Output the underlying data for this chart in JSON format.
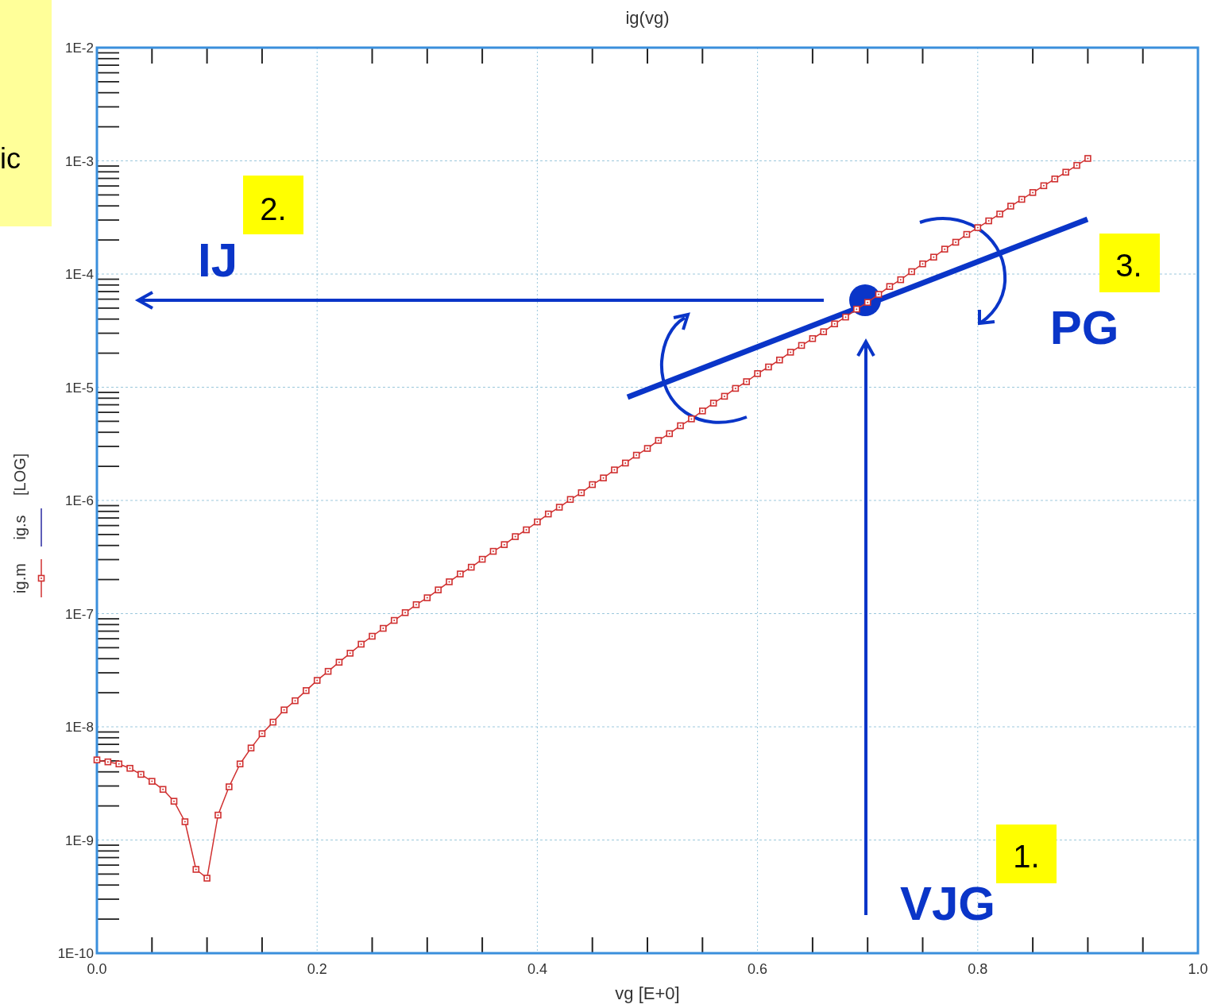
{
  "chart_data": {
    "type": "line",
    "title": "ig(vg)",
    "xlabel": "vg  [E+0]",
    "ylabel": "[LOG]",
    "log": true,
    "grid": true,
    "legend": "left",
    "xlim": [
      0,
      1
    ],
    "ylim": [
      1e-10,
      0.01
    ],
    "xticks": [
      {
        "value": 0,
        "label": "0.0"
      },
      {
        "value": 0.2,
        "label": "0.2"
      },
      {
        "value": 0.4,
        "label": "0.4"
      },
      {
        "value": 0.6,
        "label": "0.6"
      },
      {
        "value": 0.8,
        "label": "0.8"
      },
      {
        "value": 1,
        "label": "1.0"
      }
    ],
    "yticks": [
      {
        "value": 1e-10,
        "label": "1E-10"
      },
      {
        "value": 1e-09,
        "label": "1E-9"
      },
      {
        "value": 1e-08,
        "label": "1E-8"
      },
      {
        "value": 1e-07,
        "label": "1E-7"
      },
      {
        "value": 1e-06,
        "label": "1E-6"
      },
      {
        "value": 1e-05,
        "label": "1E-5"
      },
      {
        "value": 0.0001,
        "label": "1E-4"
      },
      {
        "value": 0.001,
        "label": "1E-3"
      },
      {
        "value": 0.01,
        "label": "1E-2"
      }
    ],
    "x": [
      0,
      0.01,
      0.02,
      0.03,
      0.04,
      0.05,
      0.06,
      0.07,
      0.08,
      0.09,
      0.1,
      0.11,
      0.12,
      0.13,
      0.14,
      0.15,
      0.16,
      0.17,
      0.18,
      0.19,
      0.2,
      0.21,
      0.22,
      0.23,
      0.24,
      0.25,
      0.26,
      0.27,
      0.28,
      0.29,
      0.3,
      0.31,
      0.32,
      0.33,
      0.34,
      0.35,
      0.36,
      0.37,
      0.38,
      0.39,
      0.4,
      0.41,
      0.42,
      0.43,
      0.44,
      0.45,
      0.46,
      0.47,
      0.48,
      0.49,
      0.5,
      0.51,
      0.52,
      0.53,
      0.54,
      0.55,
      0.56,
      0.57,
      0.58,
      0.59,
      0.6,
      0.61,
      0.62,
      0.63,
      0.64,
      0.65,
      0.66,
      0.67,
      0.68,
      0.69,
      0.7,
      0.71,
      0.72,
      0.73,
      0.74,
      0.75,
      0.76,
      0.77,
      0.78,
      0.79,
      0.8,
      0.81,
      0.82,
      0.83,
      0.84,
      0.85,
      0.86,
      0.87,
      0.88,
      0.89,
      0.9
    ],
    "series": [
      {
        "name": "ig.m",
        "color": "#d03030",
        "marker": "square",
        "values": [
          5.1e-09,
          4.9e-09,
          4.7e-09,
          4.3e-09,
          3.8e-09,
          3.3e-09,
          2.8e-09,
          2.2e-09,
          1.45e-09,
          5.5e-10,
          4.6e-10,
          1.66e-09,
          2.95e-09,
          4.7e-09,
          6.5e-09,
          8.7e-09,
          1.1e-08,
          1.41e-08,
          1.7e-08,
          2.09e-08,
          2.57e-08,
          3.09e-08,
          3.72e-08,
          4.47e-08,
          5.37e-08,
          6.31e-08,
          7.41e-08,
          8.71e-08,
          1.02e-07,
          1.2e-07,
          1.38e-07,
          1.62e-07,
          1.91e-07,
          2.24e-07,
          2.57e-07,
          3.02e-07,
          3.55e-07,
          4.07e-07,
          4.79e-07,
          5.5e-07,
          6.46e-07,
          7.59e-07,
          8.71e-07,
          1.02e-06,
          1.17e-06,
          1.38e-06,
          1.58e-06,
          1.86e-06,
          2.14e-06,
          2.51e-06,
          2.88e-06,
          3.39e-06,
          3.89e-06,
          4.57e-06,
          5.25e-06,
          6.17e-06,
          7.24e-06,
          8.32e-06,
          9.77e-06,
          1.12e-05,
          1.32e-05,
          1.51e-05,
          1.74e-05,
          2.04e-05,
          2.34e-05,
          2.69e-05,
          3.09e-05,
          3.63e-05,
          4.17e-05,
          4.9e-05,
          5.62e-05,
          6.61e-05,
          7.76e-05,
          8.91e-05,
          0.000105,
          0.000123,
          0.000141,
          0.000166,
          0.000191,
          0.000224,
          0.000257,
          0.000295,
          0.000339,
          0.000398,
          0.000457,
          0.000525,
          0.000603,
          0.000692,
          0.000794,
          0.000912,
          0.00105
        ]
      },
      {
        "name": "ig.s",
        "color": "#2828a0",
        "marker": "none",
        "values": [
          null,
          null,
          null,
          null,
          null,
          null,
          null,
          null,
          null,
          null,
          null,
          null,
          null,
          null,
          null,
          null,
          null,
          null,
          null,
          null,
          null,
          null,
          null,
          null,
          null,
          null,
          null,
          null,
          null,
          null,
          null,
          null,
          null,
          null,
          null,
          null,
          null,
          null,
          null,
          null,
          null,
          null,
          null,
          null,
          null,
          null,
          null,
          null,
          null,
          null,
          null,
          null,
          null,
          null,
          null,
          null,
          null,
          null,
          null,
          null,
          null,
          null,
          null,
          null,
          null,
          null,
          null,
          null,
          null,
          null,
          null,
          null,
          null,
          null,
          null,
          null,
          null,
          null,
          null,
          null,
          null,
          null,
          null,
          null,
          null,
          null,
          null,
          null,
          null,
          null,
          null
        ]
      }
    ],
    "annotations": [
      "ic",
      "2.",
      "IJ",
      "3.",
      "PG",
      "1.",
      "VJG"
    ]
  }
}
